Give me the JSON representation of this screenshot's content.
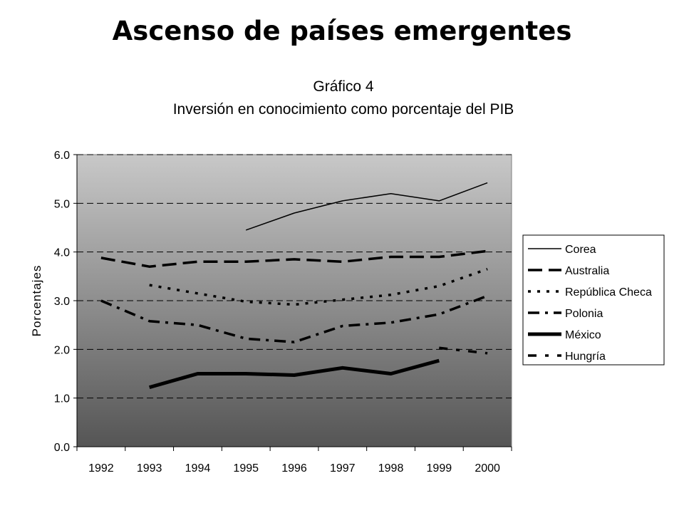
{
  "slide": {
    "title": "Ascenso de países emergentes"
  },
  "chart_data": {
    "type": "line",
    "title": "Gráfico 4",
    "subtitle": "Inversión en conocimiento como porcentaje del PIB",
    "xlabel": "",
    "ylabel": "Porcentajes",
    "categories": [
      "1992",
      "1993",
      "1994",
      "1995",
      "1996",
      "1997",
      "1998",
      "1999",
      "2000"
    ],
    "ylim": [
      0,
      6
    ],
    "yticks": [
      "0.0",
      "1.0",
      "2.0",
      "3.0",
      "4.0",
      "5.0",
      "6.0"
    ],
    "grid": true,
    "legend_position": "right",
    "series": [
      {
        "name": "Corea",
        "style": "solid-thin",
        "values": [
          null,
          null,
          null,
          4.45,
          4.8,
          5.05,
          5.2,
          5.05,
          5.42
        ]
      },
      {
        "name": "Australia",
        "style": "long-dash",
        "values": [
          3.88,
          3.7,
          3.8,
          3.8,
          3.85,
          3.8,
          3.9,
          3.9,
          4.02
        ]
      },
      {
        "name": "República Checa",
        "style": "short-dash",
        "values": [
          null,
          3.32,
          3.15,
          2.98,
          2.92,
          3.02,
          3.12,
          3.3,
          3.65
        ]
      },
      {
        "name": "Polonia",
        "style": "dash-dot",
        "values": [
          3.0,
          2.58,
          2.5,
          2.22,
          2.15,
          2.48,
          2.55,
          2.72,
          3.1
        ]
      },
      {
        "name": "México",
        "style": "solid-thick",
        "values": [
          null,
          1.22,
          1.5,
          1.5,
          1.47,
          1.62,
          1.5,
          1.77,
          null
        ]
      },
      {
        "name": "Hungría",
        "style": "dash-dot-sparse",
        "values": [
          null,
          null,
          null,
          null,
          null,
          null,
          null,
          2.03,
          1.92
        ]
      }
    ],
    "colors": {
      "plot_gradient_top": "#c8c8c8",
      "plot_gradient_bottom": "#555555",
      "line": "#000000"
    }
  }
}
